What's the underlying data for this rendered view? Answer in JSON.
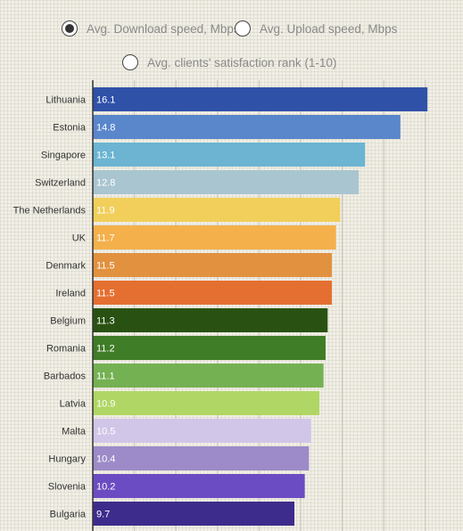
{
  "metric_options": [
    {
      "label": "Avg. Download speed, Mbps",
      "selected": true
    },
    {
      "label": "Avg. Upload speed, Mbps",
      "selected": false
    },
    {
      "label": "Avg. clients' satisfaction rank (1-10)",
      "selected": false
    }
  ],
  "chart_data": {
    "type": "bar",
    "orientation": "horizontal",
    "grid": true,
    "xlim": [
      0,
      17
    ],
    "categories": [
      "Lithuania",
      "Estonia",
      "Singapore",
      "Switzerland",
      "The Netherlands",
      "UK",
      "Denmark",
      "Ireland",
      "Belgium",
      "Romania",
      "Barbados",
      "Latvia",
      "Malta",
      "Hungary",
      "Slovenia",
      "Bulgaria"
    ],
    "values": [
      16.1,
      14.8,
      13.1,
      12.8,
      11.9,
      11.7,
      11.5,
      11.5,
      11.3,
      11.2,
      11.1,
      10.9,
      10.5,
      10.4,
      10.2,
      9.7
    ],
    "value_labels": [
      "16.1",
      "14.8",
      "13.1",
      "12.8",
      "11.9",
      "11.7",
      "11.5",
      "11.5",
      "11.3",
      "11.2",
      "11.1",
      "10.9",
      "10.5",
      "10.4",
      "10.2",
      "9.7"
    ],
    "colors": [
      "#2f52a8",
      "#5a86cc",
      "#6cb4d2",
      "#a9c5cf",
      "#f1cf5a",
      "#f4b04a",
      "#e2913f",
      "#e56f31",
      "#295212",
      "#3f7d26",
      "#74b152",
      "#b0d665",
      "#d1c6e8",
      "#9c8bc8",
      "#6c4cc2",
      "#3d2c8c"
    ]
  }
}
